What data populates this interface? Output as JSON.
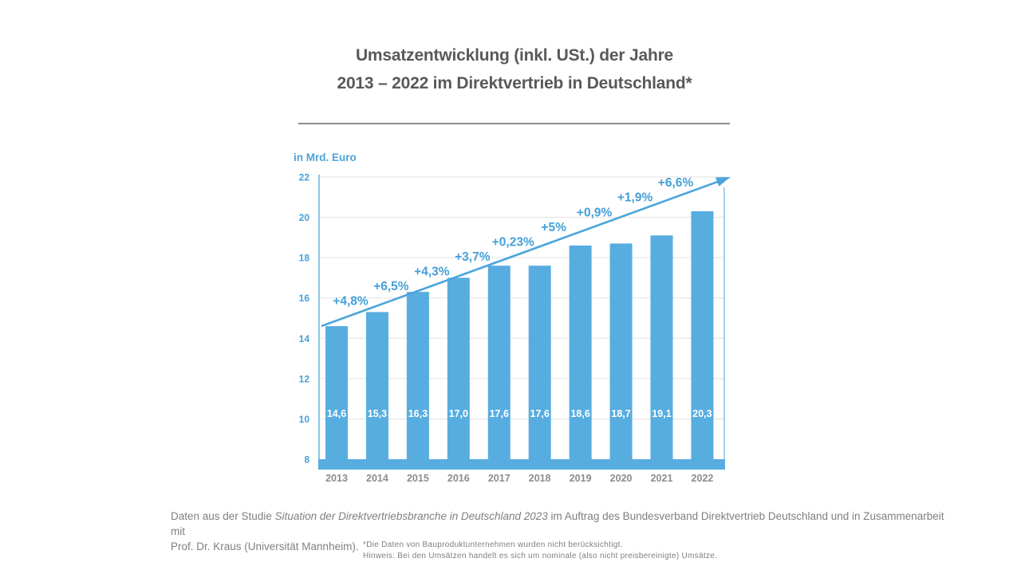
{
  "colors": {
    "bar": "#57ade0",
    "accent_text": "#45a0d7",
    "trend_line": "#4ba5db",
    "grid_line": "#e8e8e8",
    "axis_line": "#8cc6ea",
    "title_text": "#595959",
    "rule": "#8c8c8c",
    "year_text": "#8c8c8c",
    "value_text": "#ffffff",
    "muted_text": "#7f7f7f",
    "background": "#ffffff"
  },
  "chart_data": {
    "type": "bar",
    "title_line1": "Umsatzentwicklung (inkl. USt.) der Jahre",
    "title_line2": "2013 – 2022 im Direktvertrieb in Deutschland*",
    "unit_label": "in Mrd. Euro",
    "categories": [
      "2013",
      "2014",
      "2015",
      "2016",
      "2017",
      "2018",
      "2019",
      "2020",
      "2021",
      "2022"
    ],
    "values": [
      14.6,
      15.3,
      16.3,
      17.0,
      17.6,
      17.6,
      18.6,
      18.7,
      19.1,
      20.3
    ],
    "value_labels": [
      "14,6",
      "15,3",
      "16,3",
      "17,0",
      "17,6",
      "17,6",
      "18,6",
      "18,7",
      "19,1",
      "20,3"
    ],
    "growth_labels": [
      "+4,8%",
      "+6,5%",
      "+4,3%",
      "+3,7%",
      "+0,23%",
      "+5%",
      "+0,9%",
      "+1,9%",
      "+6,6%"
    ],
    "y_ticks": [
      8,
      10,
      12,
      14,
      16,
      18,
      20,
      22
    ],
    "ylim": [
      8,
      22
    ],
    "grid": true,
    "legend": "none",
    "trend_arrow": true,
    "ylabel": "in Mrd. Euro",
    "xlabel": ""
  },
  "footer": {
    "credit_prefix": "Daten aus der Studie ",
    "credit_study": "Situation der Direktvertriebsbranche in Deutschland 2023",
    "credit_suffix": " im Auftrag des Bundesverband Direktvertrieb Deutschland und in Zusammenarbeit mit",
    "credit_line2": "Prof. Dr. Kraus (Universität Mannheim).",
    "footnote_line1": "*Die Daten von Bauproduktunternehmen wurden nicht berücksichtigt.",
    "footnote_line2": "Hinweis: Bei den Umsätzen handelt es sich um nominale (also nicht preisbereinigte) Umsätze."
  }
}
